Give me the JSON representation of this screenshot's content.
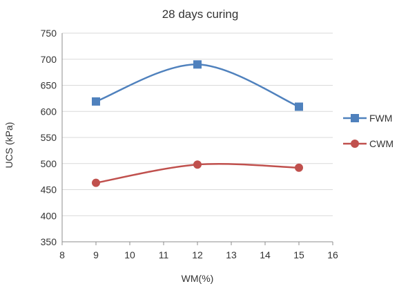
{
  "chart_data": {
    "type": "line",
    "title": "28 days curing",
    "xlabel": "WM(%)",
    "ylabel": "UCS (kPa)",
    "xlim": [
      8,
      16
    ],
    "ylim": [
      350,
      750
    ],
    "xticks": [
      8,
      9,
      10,
      11,
      12,
      13,
      14,
      15,
      16
    ],
    "yticks": [
      350,
      400,
      450,
      500,
      550,
      600,
      650,
      700,
      750
    ],
    "grid": "horizontal",
    "legend": "right",
    "x": [
      9,
      12,
      15
    ],
    "series": [
      {
        "name": "FWM",
        "values": [
          619,
          690,
          609
        ],
        "color": "#4f81bd",
        "marker": "square"
      },
      {
        "name": "CWM",
        "values": [
          463,
          498,
          492
        ],
        "color": "#c0504d",
        "marker": "circle"
      }
    ]
  }
}
